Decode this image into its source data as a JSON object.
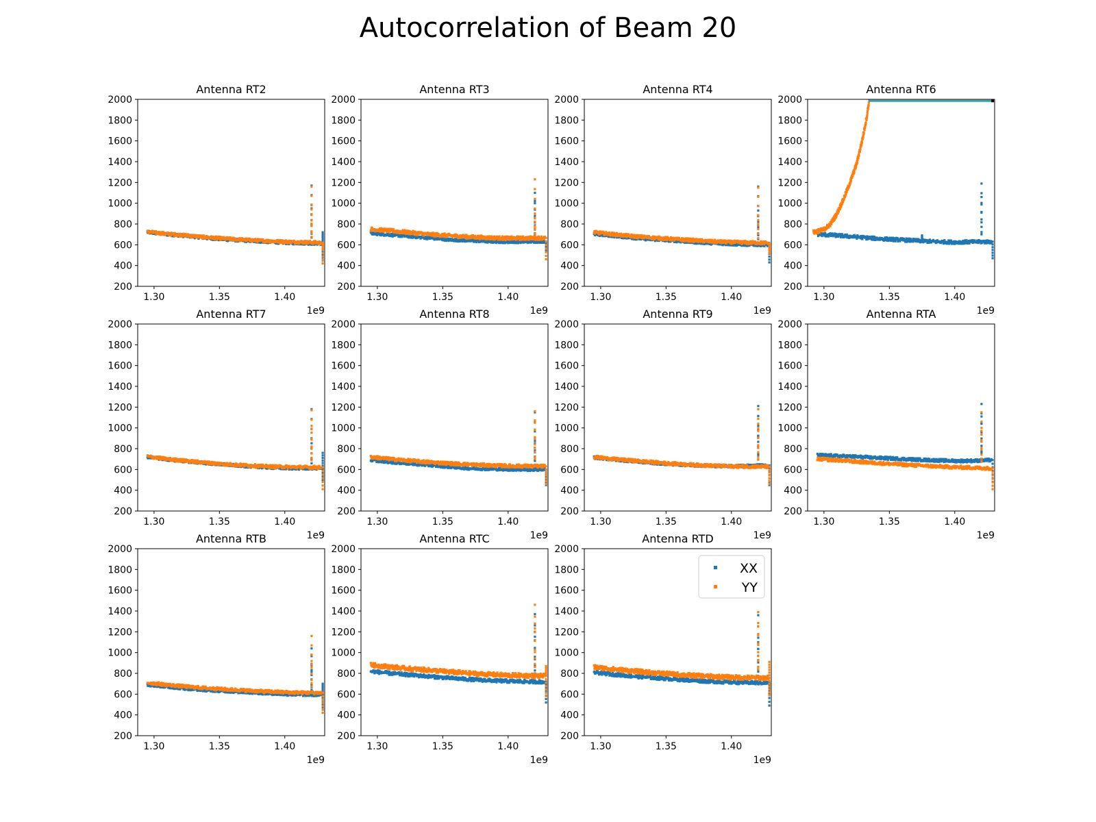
{
  "figure": {
    "title": "Autocorrelation of Beam 20"
  },
  "colors": {
    "xx": "#1f77b4",
    "yy": "#ff7f0e",
    "axis": "#000000",
    "legend_border": "#cccccc"
  },
  "chart_data": {
    "type": "scatter",
    "x_unit_label": "1e9",
    "xlim": [
      1.2875,
      1.4305
    ],
    "ylim": [
      200,
      2000
    ],
    "xticks": [
      1.3,
      1.35,
      1.4
    ],
    "xtick_labels": [
      "1.30",
      "1.35",
      "1.40"
    ],
    "yticks": [
      200,
      400,
      600,
      800,
      1000,
      1200,
      1400,
      1600,
      1800,
      2000
    ],
    "ytick_labels": [
      "200",
      "400",
      "600",
      "800",
      "1000",
      "1200",
      "1400",
      "1600",
      "1800",
      "2000"
    ],
    "legend": {
      "placement": "upper-right",
      "panel": "Antenna RTD",
      "entries": [
        "XX",
        "YY"
      ]
    },
    "x_sample": [
      1.295,
      1.31,
      1.325,
      1.34,
      1.355,
      1.37,
      1.385,
      1.4,
      1.415,
      1.428
    ],
    "panels": [
      {
        "title": "Antenna RT2",
        "series": [
          {
            "name": "XX",
            "values": [
              720,
              700,
              685,
              665,
              650,
              640,
              630,
              620,
              615,
              612
            ],
            "band": 28,
            "spikes": [
              [
                1.4205,
                1170
              ],
              [
                1.4205,
                950
              ],
              [
                1.429,
                720
              ],
              [
                1.429,
                450
              ]
            ]
          },
          {
            "name": "YY",
            "values": [
              725,
              705,
              690,
              672,
              658,
              648,
              638,
              630,
              625,
              620
            ],
            "band": 30,
            "spikes": [
              [
                1.4205,
                1160
              ],
              [
                1.4205,
                940
              ],
              [
                1.429,
                560
              ],
              [
                1.429,
                420
              ]
            ]
          }
        ]
      },
      {
        "title": "Antenna RT3",
        "series": [
          {
            "name": "XX",
            "values": [
              710,
              695,
              680,
              665,
              648,
              640,
              632,
              628,
              630,
              632
            ],
            "band": 26,
            "spikes": [
              [
                1.4205,
                1100
              ],
              [
                1.4205,
                1000
              ],
              [
                1.429,
                540
              ]
            ]
          },
          {
            "name": "YY",
            "values": [
              750,
              735,
              718,
              700,
              688,
              676,
              668,
              662,
              664,
              666
            ],
            "band": 36,
            "spikes": [
              [
                1.4205,
                1230
              ],
              [
                1.4205,
                900
              ],
              [
                1.429,
                460
              ]
            ]
          }
        ]
      },
      {
        "title": "Antenna RT4",
        "series": [
          {
            "name": "XX",
            "values": [
              700,
              685,
              665,
              650,
              640,
              625,
              615,
              605,
              600,
              598
            ],
            "band": 26,
            "spikes": [
              [
                1.4205,
                1160
              ],
              [
                1.4205,
                930
              ],
              [
                1.429,
                430
              ]
            ]
          },
          {
            "name": "YY",
            "values": [
              720,
              700,
              682,
              668,
              655,
              644,
              632,
              625,
              620,
              618
            ],
            "band": 32,
            "spikes": [
              [
                1.4205,
                1150
              ],
              [
                1.4205,
                880
              ],
              [
                1.429,
                520
              ]
            ]
          }
        ]
      },
      {
        "title": "Antenna RT6",
        "series": [
          {
            "name": "XX",
            "values": [
              700,
              690,
              675,
              660,
              650,
              640,
              630,
              625,
              628,
              630
            ],
            "band": 34,
            "spikes": [
              [
                1.4205,
                1190
              ],
              [
                1.4205,
                1060
              ],
              [
                1.429,
                470
              ],
              [
                1.375,
                690
              ]
            ]
          },
          {
            "name": "YY",
            "curve": [
              [
                1.292,
                720
              ],
              [
                1.3,
                745
              ],
              [
                1.305,
                800
              ],
              [
                1.31,
                900
              ],
              [
                1.315,
                1040
              ],
              [
                1.32,
                1200
              ],
              [
                1.325,
                1380
              ],
              [
                1.3295,
                1620
              ],
              [
                1.333,
                1850
              ],
              [
                1.3345,
                1990
              ]
            ],
            "band": 40,
            "spikes": []
          }
        ],
        "saturation_line": {
          "y": 1985,
          "x_start": 1.334,
          "x_end": 1.429,
          "color": "#3aa0a0"
        }
      },
      {
        "title": "Antenna RT7",
        "series": [
          {
            "name": "XX",
            "values": [
              720,
              695,
              678,
              660,
              645,
              632,
              620,
              612,
              610,
              612
            ],
            "band": 26,
            "spikes": [
              [
                1.4205,
                1180
              ],
              [
                1.4205,
                900
              ],
              [
                1.429,
                760
              ],
              [
                1.429,
                500
              ]
            ]
          },
          {
            "name": "YY",
            "values": [
              725,
              700,
              682,
              665,
              650,
              640,
              630,
              625,
              622,
              620
            ],
            "band": 30,
            "spikes": [
              [
                1.4205,
                1170
              ],
              [
                1.4205,
                1020
              ],
              [
                1.429,
                410
              ]
            ]
          }
        ]
      },
      {
        "title": "Antenna RT8",
        "series": [
          {
            "name": "XX",
            "values": [
              690,
              670,
              655,
              640,
              625,
              610,
              605,
              600,
              598,
              600
            ],
            "band": 26,
            "spikes": [
              [
                1.4205,
                1150
              ],
              [
                1.4205,
                850
              ],
              [
                1.429,
                450
              ]
            ]
          },
          {
            "name": "YY",
            "values": [
              720,
              700,
              684,
              670,
              658,
              648,
              640,
              634,
              632,
              630
            ],
            "band": 32,
            "spikes": [
              [
                1.4205,
                1160
              ],
              [
                1.4205,
                1050
              ],
              [
                1.429,
                460
              ]
            ]
          }
        ]
      },
      {
        "title": "Antenna RT9",
        "series": [
          {
            "name": "XX",
            "values": [
              715,
              695,
              678,
              662,
              650,
              640,
              635,
              632,
              636,
              640
            ],
            "band": 26,
            "spikes": [
              [
                1.4205,
                1210
              ],
              [
                1.4205,
                980
              ],
              [
                1.429,
                450
              ]
            ]
          },
          {
            "name": "YY",
            "values": [
              720,
              700,
              685,
              670,
              656,
              645,
              637,
              630,
              628,
              626
            ],
            "band": 30,
            "spikes": [
              [
                1.4205,
                1180
              ],
              [
                1.4205,
                1040
              ],
              [
                1.429,
                460
              ]
            ]
          }
        ]
      },
      {
        "title": "Antenna RTA",
        "series": [
          {
            "name": "XX",
            "values": [
              738,
              730,
              722,
              712,
              704,
              695,
              688,
              682,
              684,
              690
            ],
            "band": 30,
            "spikes": [
              [
                1.4205,
                1230
              ],
              [
                1.4205,
                1110
              ],
              [
                1.429,
                480
              ]
            ]
          },
          {
            "name": "YY",
            "values": [
              700,
              690,
              675,
              662,
              650,
              640,
              630,
              622,
              616,
              610
            ],
            "band": 32,
            "spikes": [
              [
                1.4205,
                1150
              ],
              [
                1.4205,
                1000
              ],
              [
                1.429,
                410
              ]
            ]
          }
        ]
      },
      {
        "title": "Antenna RTB",
        "series": [
          {
            "name": "XX",
            "values": [
              690,
              670,
              652,
              638,
              628,
              618,
              608,
              598,
              594,
              592
            ],
            "band": 26,
            "spikes": [
              [
                1.4205,
                1040
              ],
              [
                1.4205,
                880
              ],
              [
                1.429,
                450
              ],
              [
                1.429,
                700
              ]
            ]
          },
          {
            "name": "YY",
            "values": [
              710,
              690,
              672,
              658,
              646,
              636,
              626,
              618,
              614,
              612
            ],
            "band": 30,
            "spikes": [
              [
                1.4205,
                1160
              ],
              [
                1.4205,
                980
              ],
              [
                1.429,
                420
              ]
            ]
          }
        ]
      },
      {
        "title": "Antenna RTC",
        "series": [
          {
            "name": "XX",
            "values": [
              820,
              800,
              785,
              770,
              755,
              742,
              732,
              725,
              720,
              718
            ],
            "band": 34,
            "spikes": [
              [
                1.4205,
                1370
              ],
              [
                1.4205,
                1200
              ],
              [
                1.429,
                520
              ],
              [
                1.429,
                640
              ]
            ]
          },
          {
            "name": "YY",
            "values": [
              880,
              862,
              845,
              830,
              815,
              800,
              790,
              782,
              778,
              775
            ],
            "band": 44,
            "spikes": [
              [
                1.4205,
                1460
              ],
              [
                1.4205,
                1280
              ],
              [
                1.429,
                580
              ],
              [
                1.429,
                870
              ]
            ]
          }
        ]
      },
      {
        "title": "Antenna RTD",
        "series": [
          {
            "name": "XX",
            "values": [
              810,
              790,
              772,
              758,
              745,
              732,
              722,
              714,
              710,
              708
            ],
            "band": 34,
            "spikes": [
              [
                1.4205,
                1360
              ],
              [
                1.4205,
                1100
              ],
              [
                1.429,
                490
              ],
              [
                1.429,
                650
              ]
            ]
          },
          {
            "name": "YY",
            "values": [
              860,
              840,
              822,
              806,
              792,
              780,
              770,
              762,
              758,
              756
            ],
            "band": 44,
            "spikes": [
              [
                1.4205,
                1390
              ],
              [
                1.4205,
                1250
              ],
              [
                1.429,
                590
              ],
              [
                1.429,
                910
              ]
            ]
          }
        ]
      }
    ]
  }
}
